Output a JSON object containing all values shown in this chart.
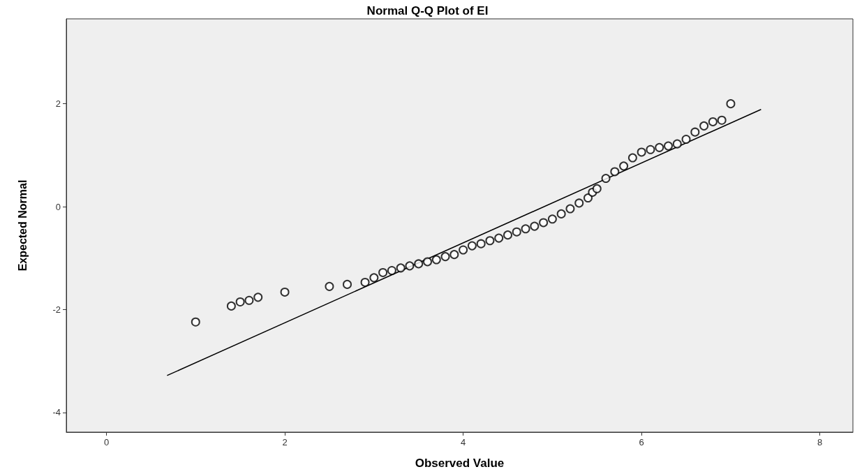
{
  "chart_data": {
    "type": "scatter",
    "title": "Normal Q-Q Plot of EI",
    "xlabel": "Observed Value",
    "ylabel": "Expected Normal",
    "xlim": [
      -0.45,
      8.37
    ],
    "ylim": [
      -4.38,
      3.65
    ],
    "xticks": [
      0,
      2,
      4,
      6,
      8
    ],
    "yticks": [
      -4,
      -2,
      0,
      2
    ],
    "marker": "circle",
    "series": [
      {
        "color": "#000000",
        "x": [
          1.0,
          1.4,
          1.5,
          1.6,
          1.7,
          2.0,
          2.5,
          2.7,
          2.9,
          3.0,
          3.1,
          3.2,
          3.3,
          3.4,
          3.5,
          3.6,
          3.7,
          3.8,
          3.9,
          4.0,
          4.1,
          4.2,
          4.3,
          4.4,
          4.5,
          4.6,
          4.7,
          4.8,
          4.9,
          5.0,
          5.1,
          5.2,
          5.3,
          5.4,
          5.45,
          5.5,
          5.6,
          5.7,
          5.8,
          5.9,
          6.0,
          6.1,
          6.2,
          6.3,
          6.4,
          6.5,
          6.6,
          6.7,
          6.8,
          6.9,
          7.0
        ],
        "values": [
          -2.24,
          -1.93,
          -1.85,
          -1.82,
          -1.76,
          -1.66,
          -1.55,
          -1.51,
          -1.47,
          -1.38,
          -1.28,
          -1.24,
          -1.19,
          -1.15,
          -1.11,
          -1.07,
          -1.03,
          -0.97,
          -0.93,
          -0.84,
          -0.76,
          -0.72,
          -0.66,
          -0.61,
          -0.55,
          -0.49,
          -0.43,
          -0.38,
          -0.31,
          -0.24,
          -0.14,
          -0.04,
          0.07,
          0.17,
          0.28,
          0.35,
          0.55,
          0.68,
          0.79,
          0.95,
          1.06,
          1.11,
          1.15,
          1.18,
          1.22,
          1.31,
          1.45,
          1.57,
          1.65,
          1.68,
          2.0
        ]
      },
      {
        "type": "line",
        "color": "#000000",
        "marker": "none",
        "line_style": "solid",
        "x": [
          0.68,
          7.34
        ],
        "values": [
          -3.28,
          1.89
        ]
      }
    ]
  }
}
